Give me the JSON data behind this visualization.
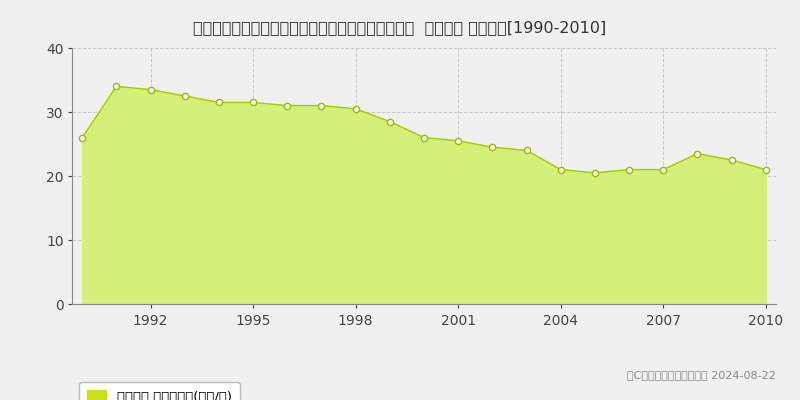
{
  "title": "北海道札幌市厚別区大谷地西５丁目６７７番１００  地価公示 地価推移[1990-2010]",
  "years": [
    1990,
    1991,
    1992,
    1993,
    1994,
    1995,
    1996,
    1997,
    1998,
    1999,
    2000,
    2001,
    2002,
    2003,
    2004,
    2005,
    2006,
    2007,
    2008,
    2009,
    2010
  ],
  "values": [
    26.0,
    34.0,
    33.5,
    32.5,
    31.5,
    31.5,
    31.0,
    31.0,
    30.5,
    28.5,
    26.0,
    25.5,
    24.5,
    24.0,
    21.0,
    20.5,
    21.0,
    21.0,
    23.5,
    22.5,
    21.0
  ],
  "fill_color": "#d4ef7a",
  "line_color": "#a8c800",
  "marker_facecolor": "#ffffff",
  "marker_edgecolor": "#a0b800",
  "grid_color": "#c8c8c8",
  "background_color": "#f0f0f0",
  "plot_bg_color": "#f0f0f0",
  "ylim": [
    0,
    40
  ],
  "yticks": [
    0,
    10,
    20,
    30,
    40
  ],
  "xticks": [
    1992,
    1995,
    1998,
    2001,
    2004,
    2007,
    2010
  ],
  "legend_label": "地価公示 平均坪単価(万円/坪)",
  "legend_color": "#c8e020",
  "copyright_text": "（C）土地価格ドットコム 2024-08-22",
  "title_fontsize": 11.5,
  "axis_fontsize": 10,
  "legend_fontsize": 9.5
}
